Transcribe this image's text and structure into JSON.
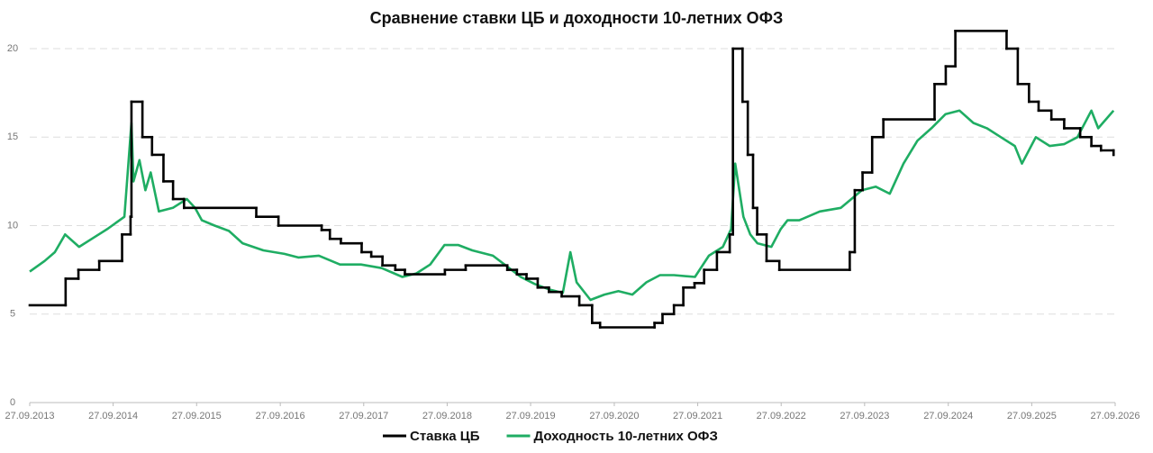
{
  "chart_data": {
    "type": "line",
    "title": "Сравнение ставки ЦБ и доходности 10-летних ОФЗ",
    "xlim": [
      "2013-09-27",
      "2026-09-27"
    ],
    "xticks": [
      {
        "value": "2013-09-27",
        "label": "27.09.2013"
      },
      {
        "value": "2014-09-27",
        "label": "27.09.2014"
      },
      {
        "value": "2015-09-27",
        "label": "27.09.2015"
      },
      {
        "value": "2016-09-27",
        "label": "27.09.2016"
      },
      {
        "value": "2017-09-27",
        "label": "27.09.2017"
      },
      {
        "value": "2018-09-27",
        "label": "27.09.2018"
      },
      {
        "value": "2019-09-27",
        "label": "27.09.2019"
      },
      {
        "value": "2020-09-27",
        "label": "27.09.2020"
      },
      {
        "value": "2021-09-27",
        "label": "27.09.2021"
      },
      {
        "value": "2022-09-27",
        "label": "27.09.2022"
      },
      {
        "value": "2023-09-27",
        "label": "27.09.2023"
      },
      {
        "value": "2024-09-27",
        "label": "27.09.2024"
      },
      {
        "value": "2025-09-27",
        "label": "27.09.2025"
      },
      {
        "value": "2026-09-27",
        "label": "27.09.2026"
      }
    ],
    "ylim": [
      0,
      20
    ],
    "yticks": [
      0,
      5,
      10,
      15,
      20
    ],
    "grid": true,
    "series": [
      {
        "name": "Ставка ЦБ",
        "color": "#000000",
        "step": true,
        "x": [
          "2013-09-27",
          "2014-03-03",
          "2014-04-28",
          "2014-07-28",
          "2014-11-05",
          "2014-12-12",
          "2014-12-16",
          "2015-02-02",
          "2015-03-16",
          "2015-05-05",
          "2015-06-16",
          "2015-08-03",
          "2016-06-14",
          "2016-09-19",
          "2017-03-27",
          "2017-05-02",
          "2017-06-19",
          "2017-09-18",
          "2017-10-30",
          "2017-12-18",
          "2018-02-12",
          "2018-03-26",
          "2018-09-17",
          "2018-12-17",
          "2019-06-17",
          "2019-07-29",
          "2019-09-09",
          "2019-10-28",
          "2019-12-16",
          "2020-02-10",
          "2020-04-27",
          "2020-06-22",
          "2020-07-27",
          "2021-03-22",
          "2021-04-26",
          "2021-06-15",
          "2021-07-26",
          "2021-09-13",
          "2021-10-25",
          "2021-12-20",
          "2022-02-14",
          "2022-02-28",
          "2022-04-11",
          "2022-05-04",
          "2022-05-27",
          "2022-06-14",
          "2022-07-25",
          "2022-09-19",
          "2023-07-24",
          "2023-08-15",
          "2023-09-18",
          "2023-10-30",
          "2023-12-18",
          "2024-07-29",
          "2024-09-16",
          "2024-10-28",
          "2025-06-09",
          "2025-07-28",
          "2025-09-15",
          "2025-10-27",
          "2025-12-22",
          "2026-02-16",
          "2026-04-27",
          "2026-06-15",
          "2026-07-27",
          "2026-09-20"
        ],
        "values": [
          5.5,
          7,
          7.5,
          8,
          9.5,
          10.5,
          17,
          15,
          14,
          12.5,
          11.5,
          11,
          10.5,
          10,
          9.75,
          9.25,
          9,
          8.5,
          8.25,
          7.75,
          7.5,
          7.25,
          7.5,
          7.75,
          7.5,
          7.25,
          7,
          6.5,
          6.25,
          6,
          5.5,
          4.5,
          4.25,
          4.5,
          5,
          5.5,
          6.5,
          6.75,
          7.5,
          8.5,
          9.5,
          20,
          17,
          14,
          11,
          9.5,
          8,
          7.5,
          8.5,
          12,
          13,
          15,
          16,
          18,
          19,
          21,
          20,
          18,
          17,
          16.5,
          16,
          15.5,
          15,
          14.5,
          14.25,
          14
        ]
      },
      {
        "name": "Доходность 10-летних ОФЗ",
        "color": "#1fad63",
        "x": [
          "2013-09-27",
          "2013-12-01",
          "2014-01-15",
          "2014-03-01",
          "2014-05-01",
          "2014-07-01",
          "2014-09-01",
          "2014-11-15",
          "2014-12-16",
          "2014-12-25",
          "2015-01-20",
          "2015-02-15",
          "2015-03-10",
          "2015-04-15",
          "2015-06-15",
          "2015-08-15",
          "2015-09-20",
          "2015-10-20",
          "2015-12-15",
          "2016-02-15",
          "2016-04-15",
          "2016-07-15",
          "2016-10-15",
          "2016-12-15",
          "2017-03-15",
          "2017-06-15",
          "2017-09-15",
          "2017-12-15",
          "2018-03-15",
          "2018-05-15",
          "2018-07-15",
          "2018-09-15",
          "2018-11-15",
          "2019-01-15",
          "2019-04-15",
          "2019-06-15",
          "2019-08-15",
          "2019-10-15",
          "2019-12-15",
          "2020-02-15",
          "2020-03-19",
          "2020-04-15",
          "2020-06-15",
          "2020-08-15",
          "2020-10-15",
          "2020-12-15",
          "2021-02-15",
          "2021-04-15",
          "2021-06-15",
          "2021-09-15",
          "2021-11-15",
          "2022-01-15",
          "2022-02-20",
          "2022-03-10",
          "2022-04-15",
          "2022-05-15",
          "2022-06-15",
          "2022-08-15",
          "2022-09-25",
          "2022-10-25",
          "2022-12-15",
          "2023-03-15",
          "2023-06-15",
          "2023-09-15",
          "2023-11-15",
          "2024-01-15",
          "2024-03-15",
          "2024-05-15",
          "2024-07-15",
          "2024-09-15",
          "2024-11-15",
          "2025-01-15",
          "2025-03-15",
          "2025-05-15",
          "2025-07-15",
          "2025-08-15",
          "2025-10-15",
          "2025-12-15",
          "2026-02-15",
          "2026-04-15",
          "2026-06-15",
          "2026-07-15",
          "2026-09-20"
        ],
        "values": [
          7.4,
          8,
          8.5,
          9.5,
          8.8,
          9.3,
          9.8,
          10.5,
          15.8,
          12.5,
          13.7,
          12,
          13,
          10.8,
          11,
          11.5,
          11,
          10.3,
          10,
          9.7,
          9,
          8.6,
          8.4,
          8.2,
          8.3,
          7.8,
          7.8,
          7.6,
          7.1,
          7.3,
          7.8,
          8.9,
          8.9,
          8.6,
          8.3,
          7.7,
          7.1,
          6.7,
          6.4,
          6.2,
          8.5,
          6.8,
          5.8,
          6.1,
          6.3,
          6.1,
          6.8,
          7.2,
          7.2,
          7.1,
          8.3,
          8.8,
          9.8,
          13.5,
          10.5,
          9.5,
          9,
          8.8,
          9.8,
          10.3,
          10.3,
          10.8,
          11,
          12,
          12.2,
          11.8,
          13.5,
          14.8,
          15.5,
          16.3,
          16.5,
          15.8,
          15.5,
          15,
          14.5,
          13.5,
          15,
          14.5,
          14.6,
          15,
          16.5,
          15.5,
          16.5
        ]
      }
    ]
  }
}
